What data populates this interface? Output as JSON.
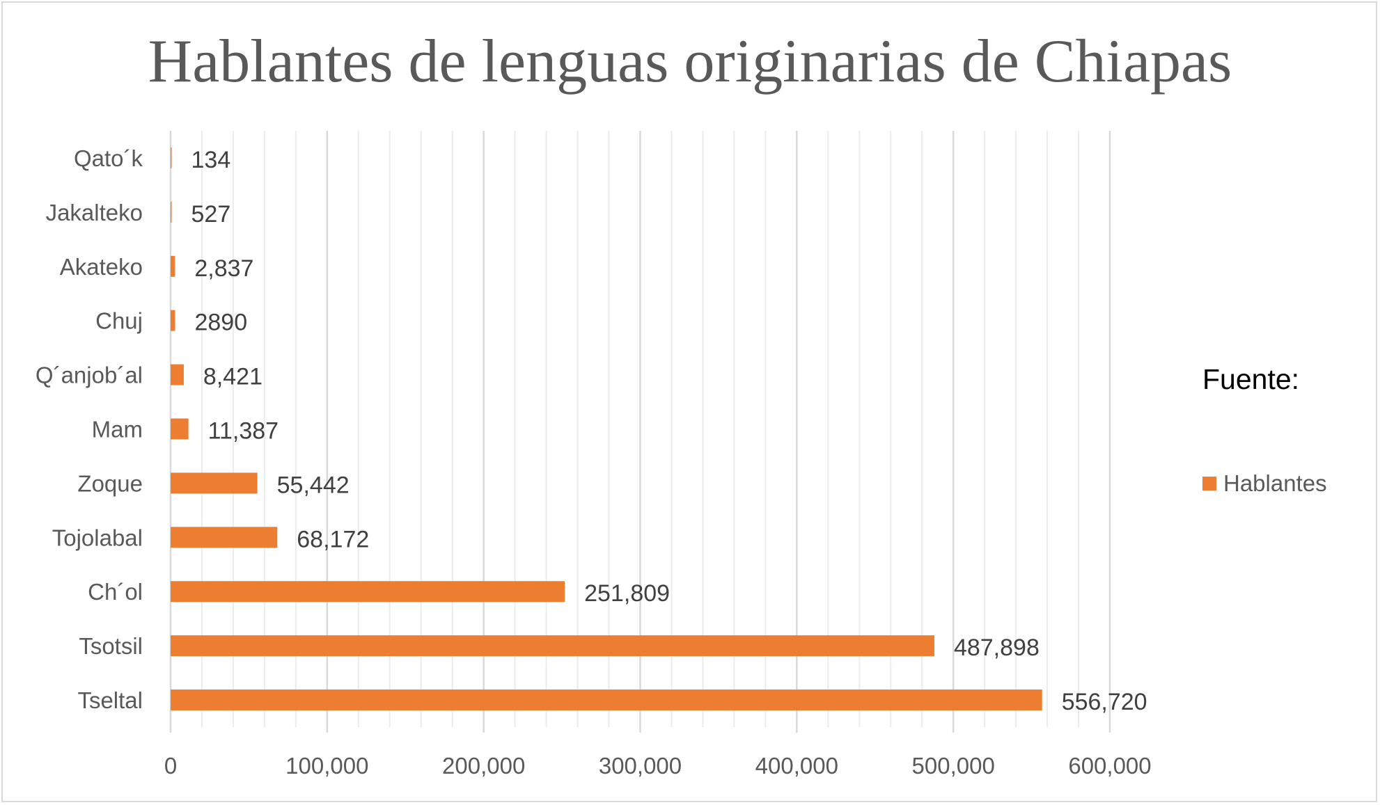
{
  "chart_data": {
    "type": "bar",
    "orientation": "horizontal",
    "title": "Hablantes de lenguas originarias de Chiapas",
    "categories": [
      "Tseltal",
      "Tsotsil",
      "Ch´ol",
      "Tojolabal",
      "Zoque",
      "Mam",
      "Q´anjob´al",
      "Chuj",
      "Akateko",
      "Jakalteko",
      "Qato´k"
    ],
    "series": [
      {
        "name": "Hablantes",
        "values": [
          556720,
          487898,
          251809,
          68172,
          55442,
          11387,
          8421,
          2890,
          2837,
          527,
          134
        ],
        "data_labels": [
          "556,720",
          "487,898",
          "251,809",
          "68,172",
          "55,442",
          "11,387",
          "8,421",
          "2890",
          "2,837",
          "527",
          "134"
        ]
      }
    ],
    "xlim": [
      0,
      600000
    ],
    "x_ticks": [
      0,
      100000,
      200000,
      300000,
      400000,
      500000,
      600000
    ],
    "x_tick_labels": [
      "0",
      "100,000",
      "200,000",
      "300,000",
      "400,000",
      "500,000",
      "600,000"
    ],
    "grid": true,
    "legend": {
      "title": "Fuente:",
      "placement": "right"
    },
    "colors": {
      "bar": "#ED7D31",
      "grid": "#d9d9d9"
    }
  }
}
